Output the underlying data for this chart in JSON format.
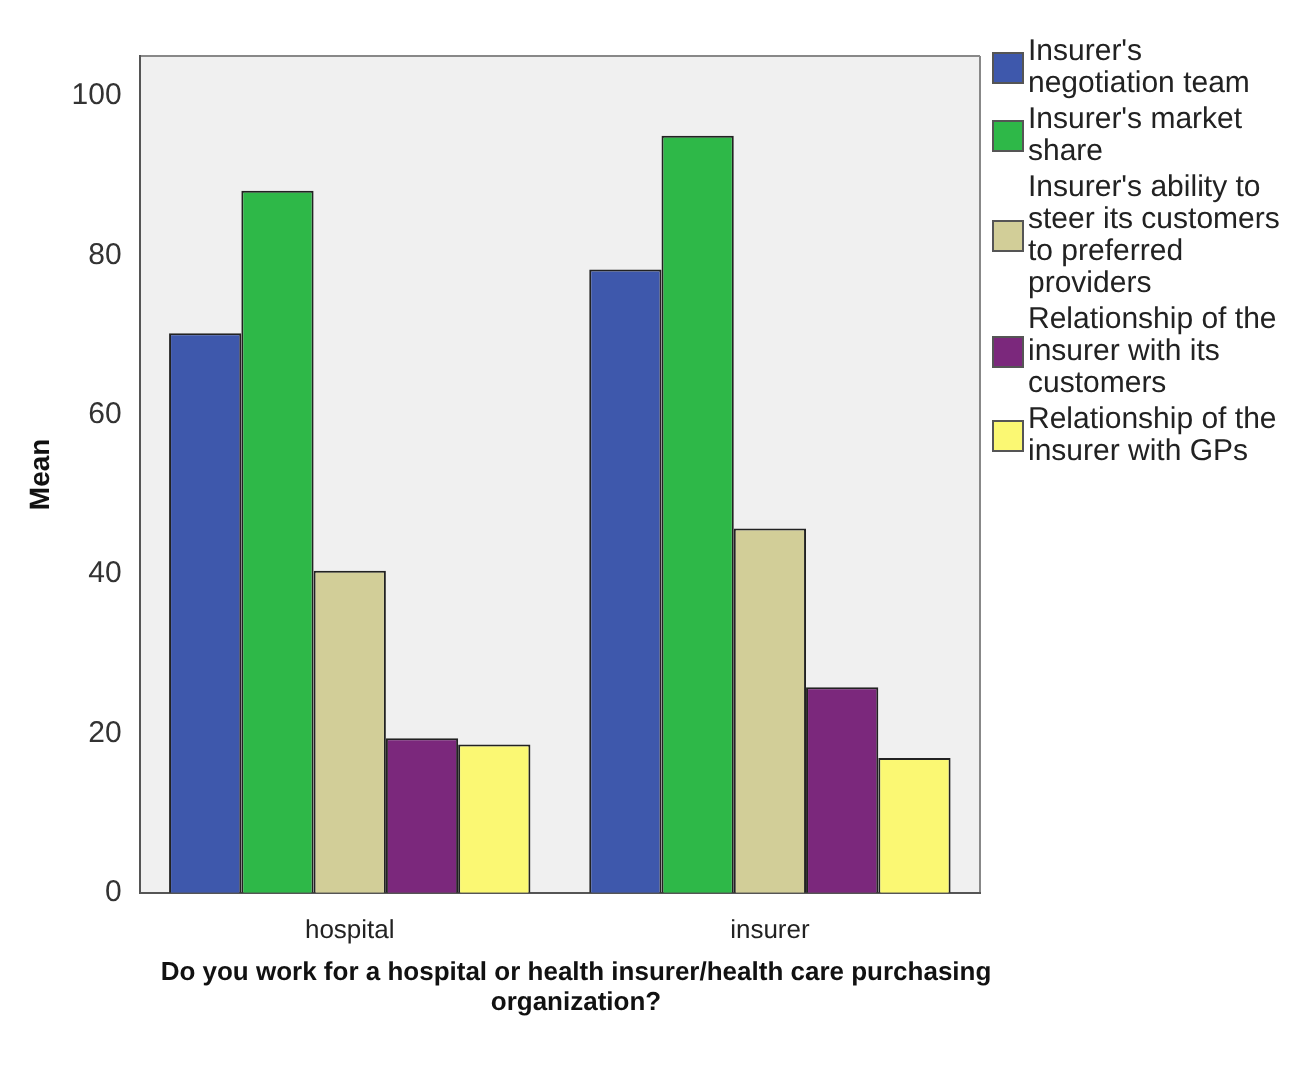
{
  "chart_data": {
    "type": "bar",
    "xlabel": "Do you work for a hospital or health insurer/health care purchasing organization?",
    "ylabel": "Mean",
    "categories": [
      "hospital",
      "insurer"
    ],
    "series": [
      {
        "name": "Insurer's negotiation team",
        "color": "#3e58ac",
        "values": [
          70.2,
          78.2
        ]
      },
      {
        "name": "Insurer's market share",
        "color": "#2eb848",
        "values": [
          88.1,
          95.0
        ]
      },
      {
        "name": "Insurer's ability to steer its customers to preferred providers",
        "color": "#d2ce98",
        "values": [
          40.4,
          45.7
        ]
      },
      {
        "name": "Relationship of the insurer with its customers",
        "color": "#7b287c",
        "values": [
          19.4,
          25.8
        ]
      },
      {
        "name": "Relationship of the insurer with GPs",
        "color": "#fbf873",
        "values": [
          18.6,
          16.9
        ]
      }
    ],
    "ylim": [
      0,
      105
    ],
    "yticks": [
      0,
      20,
      40,
      60,
      80,
      100
    ],
    "grid": false,
    "legend": "right"
  }
}
